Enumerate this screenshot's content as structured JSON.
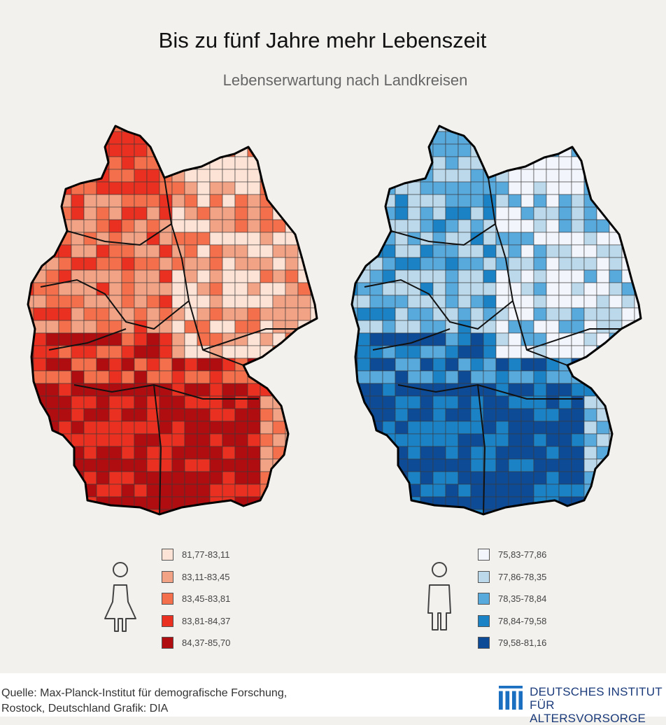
{
  "title": "Bis zu fünf Jahre mehr Lebenszeit",
  "subtitle": "Lebenserwartung nach Landkreisen",
  "maps": {
    "female": {
      "icon": "female-person-icon",
      "legend": [
        {
          "label": "81,77-83,11",
          "color": "#fde3d6"
        },
        {
          "label": "83,11-83,45",
          "color": "#f3a385"
        },
        {
          "label": "83,45-83,81",
          "color": "#f4704c"
        },
        {
          "label": "83,81-84,37",
          "color": "#ea3020"
        },
        {
          "label": "84,37-85,70",
          "color": "#b00d10"
        }
      ]
    },
    "male": {
      "icon": "male-person-icon",
      "legend": [
        {
          "label": "75,83-77,86",
          "color": "#f2f5fc"
        },
        {
          "label": "77,86-78,35",
          "color": "#bcd9ec"
        },
        {
          "label": "78,35-78,84",
          "color": "#58a9dc"
        },
        {
          "label": "78,84-79,58",
          "color": "#1c82c6"
        },
        {
          "label": "79,58-81,16",
          "color": "#0d4b96"
        }
      ]
    }
  },
  "footer": {
    "source_line1": "Quelle: Max-Planck-Institut für demografische Forschung,",
    "source_line2": "Rostock, Deutschland  Grafik: DIA",
    "logo_line1": "DEUTSCHES INSTITUT",
    "logo_line2": "FÜR ALTERSVORSORGE",
    "logo_color": "#1a6fc0"
  }
}
